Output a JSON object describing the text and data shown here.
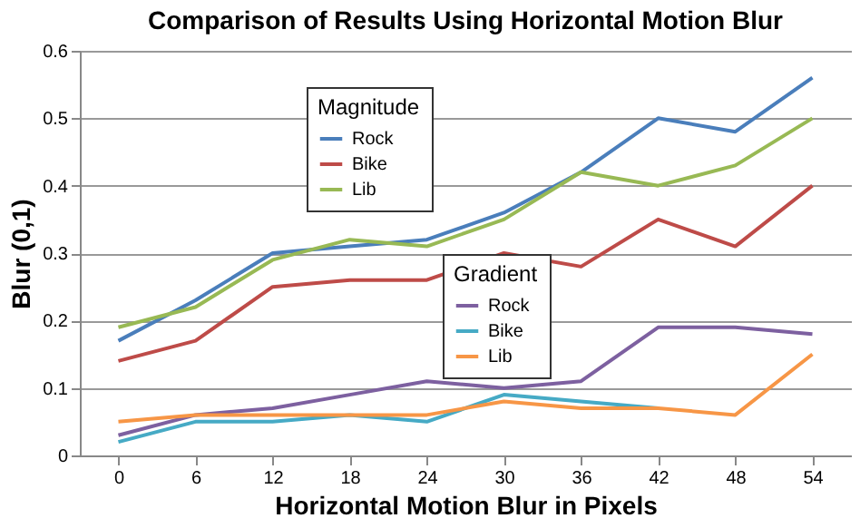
{
  "chart_data": {
    "type": "line",
    "title": "Comparison of Results Using Horizontal Motion Blur",
    "xlabel": "Horizontal Motion Blur in Pixels",
    "ylabel": "Blur (0,1)",
    "categories": [
      "0",
      "6",
      "12",
      "18",
      "24",
      "30",
      "36",
      "42",
      "48",
      "54"
    ],
    "series": [
      {
        "name": "Rock",
        "color": "#4a7ebb",
        "values": [
          0.17,
          0.23,
          0.3,
          0.31,
          0.32,
          0.36,
          0.42,
          0.5,
          0.48,
          0.56
        ]
      },
      {
        "name": "Bike",
        "color": "#be4b48",
        "values": [
          0.14,
          0.17,
          0.25,
          0.26,
          0.26,
          0.3,
          0.28,
          0.35,
          0.31,
          0.4
        ]
      },
      {
        "name": "Lib",
        "color": "#98b954",
        "values": [
          0.19,
          0.22,
          0.29,
          0.32,
          0.31,
          0.35,
          0.42,
          0.4,
          0.43,
          0.5
        ]
      },
      {
        "name": "Rock",
        "color": "#7d60a0",
        "values": [
          0.03,
          0.06,
          0.07,
          0.09,
          0.11,
          0.1,
          0.11,
          0.19,
          0.19,
          0.18
        ]
      },
      {
        "name": "Bike",
        "color": "#46aac5",
        "values": [
          0.02,
          0.05,
          0.05,
          0.06,
          0.05,
          0.09,
          0.08,
          0.07,
          null,
          null
        ]
      },
      {
        "name": "Lib",
        "color": "#f79646",
        "values": [
          0.05,
          0.06,
          0.06,
          0.06,
          0.06,
          0.08,
          0.07,
          0.07,
          0.06,
          0.15
        ]
      }
    ],
    "annotations": [
      "Magnitude",
      "Gradient"
    ],
    "ylim": [
      0,
      0.6
    ],
    "yticks": [
      0,
      0.1,
      0.2,
      0.3,
      0.4,
      0.5,
      0.6
    ],
    "grid": "y",
    "legend": "top",
    "marker": "none",
    "line_style": "solid"
  }
}
